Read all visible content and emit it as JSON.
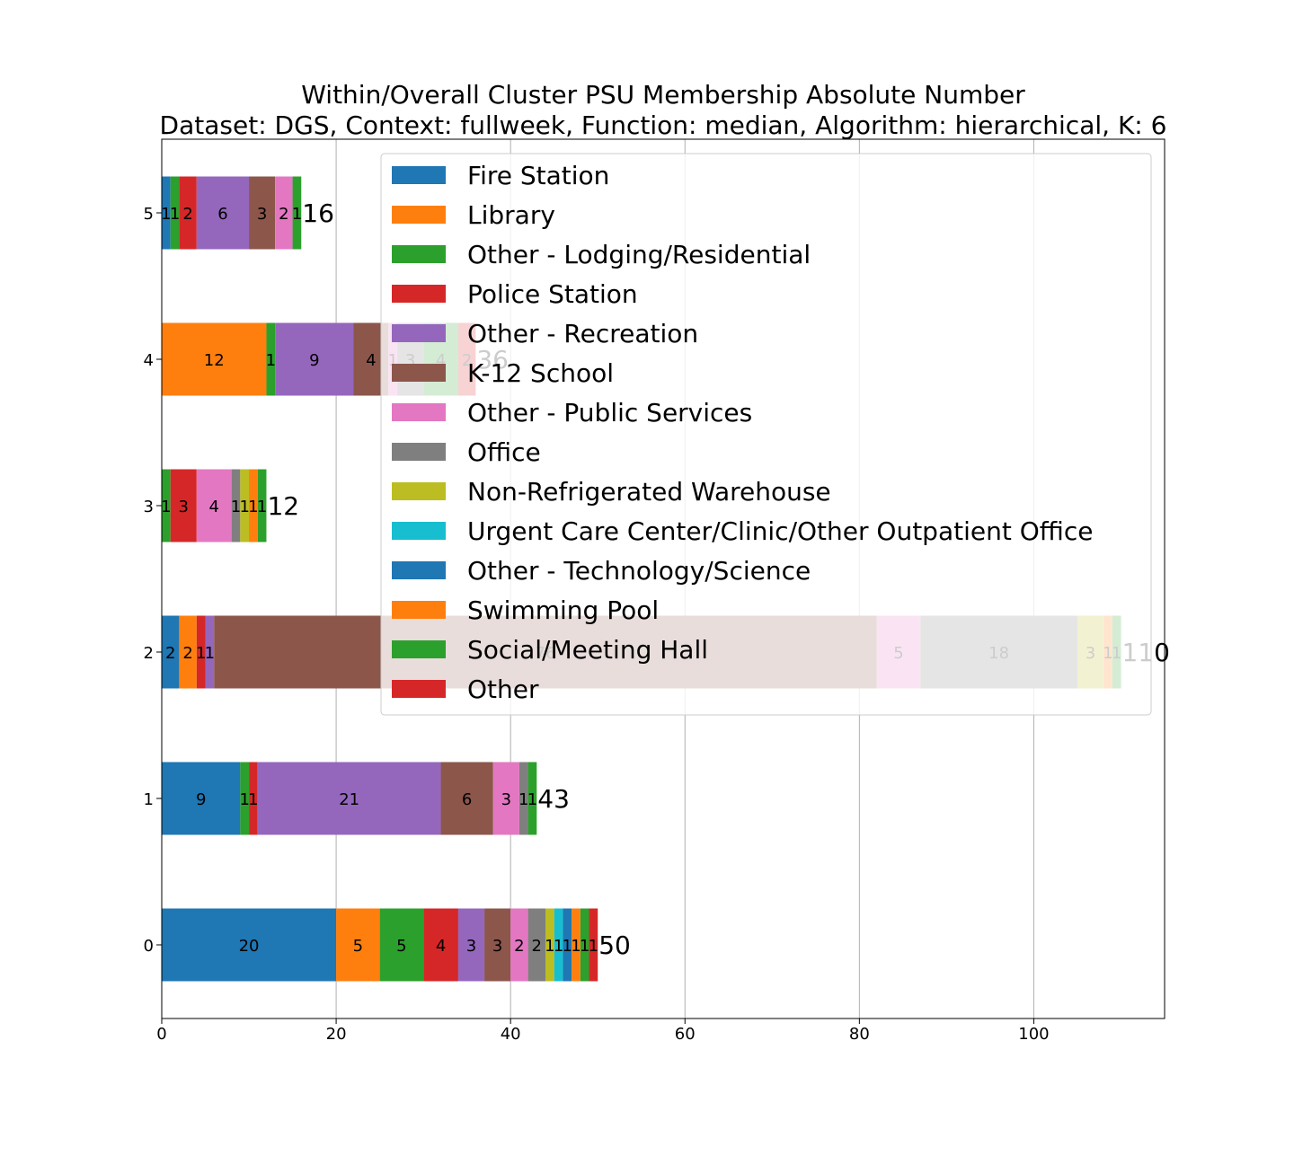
{
  "chart_data": {
    "type": "bar",
    "orientation": "horizontal",
    "stacked": true,
    "title": [
      "Within/Overall Cluster PSU Membership Absolute Number",
      "Dataset: DGS, Context: fullweek, Function: median, Algorithm: hierarchical, K: 6"
    ],
    "categories": [
      "0",
      "1",
      "2",
      "3",
      "4",
      "5"
    ],
    "xlim": [
      0,
      115
    ],
    "xticks": [
      0,
      20,
      40,
      60,
      80,
      100
    ],
    "grid": "x",
    "legend_position": "upper right",
    "series": [
      {
        "name": "Fire Station",
        "color": "#1f77b4",
        "values": [
          20,
          9,
          2,
          0,
          0,
          1
        ]
      },
      {
        "name": "Library",
        "color": "#ff7f0e",
        "values": [
          5,
          0,
          2,
          0,
          12,
          0
        ]
      },
      {
        "name": "Other - Lodging/Residential",
        "color": "#2ca02c",
        "values": [
          5,
          1,
          0,
          1,
          1,
          1
        ]
      },
      {
        "name": "Police Station",
        "color": "#d62728",
        "values": [
          4,
          1,
          1,
          3,
          0,
          2
        ]
      },
      {
        "name": "Other - Recreation",
        "color": "#9467bd",
        "values": [
          3,
          21,
          1,
          0,
          9,
          6
        ]
      },
      {
        "name": "K-12 School",
        "color": "#8c564b",
        "values": [
          3,
          6,
          76,
          0,
          4,
          3
        ]
      },
      {
        "name": "Other - Public Services",
        "color": "#e377c2",
        "values": [
          2,
          3,
          5,
          4,
          1,
          2
        ]
      },
      {
        "name": "Office",
        "color": "#7f7f7f",
        "values": [
          2,
          1,
          18,
          1,
          3,
          0
        ]
      },
      {
        "name": "Non-Refrigerated Warehouse",
        "color": "#bcbd22",
        "values": [
          1,
          0,
          3,
          1,
          0,
          0
        ]
      },
      {
        "name": "Urgent Care Center/Clinic/Other Outpatient Office",
        "color": "#17becf",
        "values": [
          1,
          0,
          0,
          0,
          0,
          0
        ]
      },
      {
        "name": "Other - Technology/Science",
        "color": "#1f77b4",
        "values": [
          1,
          0,
          0,
          0,
          0,
          0
        ]
      },
      {
        "name": "Swimming Pool",
        "color": "#ff7f0e",
        "values": [
          1,
          0,
          1,
          1,
          0,
          0
        ]
      },
      {
        "name": "Social/Meeting Hall",
        "color": "#2ca02c",
        "values": [
          1,
          1,
          1,
          1,
          4,
          1
        ]
      },
      {
        "name": "Other",
        "color": "#d62728",
        "values": [
          1,
          0,
          0,
          0,
          2,
          0
        ]
      }
    ],
    "totals": [
      50,
      43,
      110,
      12,
      36,
      16
    ]
  }
}
